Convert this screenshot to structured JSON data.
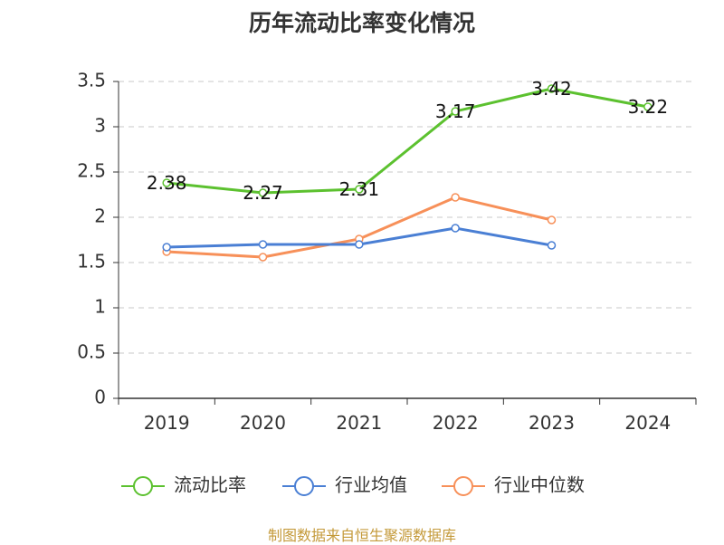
{
  "chart_data": {
    "type": "line",
    "title": "历年流动比率变化情况",
    "categories": [
      "2019",
      "2020",
      "2021",
      "2022",
      "2023",
      "2024"
    ],
    "ylim": [
      0,
      3.5
    ],
    "yticks": [
      "0",
      "0.5",
      "1",
      "1.5",
      "2",
      "2.5",
      "3",
      "3.5"
    ],
    "grid": true,
    "legend_position": "bottom",
    "series": [
      {
        "name": "流动比率",
        "color": "#5cc12f",
        "values": [
          2.38,
          2.27,
          2.31,
          3.17,
          3.42,
          3.22
        ],
        "labels": [
          "2.38",
          "2.27",
          "2.31",
          "3.17",
          "3.42",
          "3.22"
        ]
      },
      {
        "name": "行业均值",
        "color": "#4a7fd4",
        "values": [
          1.67,
          1.7,
          1.7,
          1.88,
          1.69,
          null
        ]
      },
      {
        "name": "行业中位数",
        "color": "#f79059",
        "values": [
          1.62,
          1.56,
          1.76,
          2.22,
          1.97,
          null
        ]
      }
    ]
  },
  "source_text": "制图数据来自恒生聚源数据库"
}
